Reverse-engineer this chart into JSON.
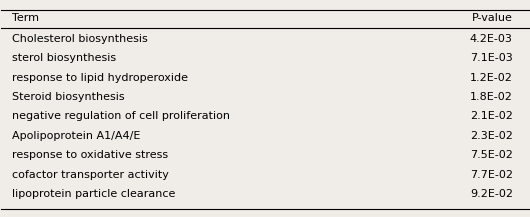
{
  "headers": [
    "Term",
    "P-value"
  ],
  "rows": [
    [
      "Cholesterol biosynthesis",
      "4.2E-03"
    ],
    [
      "sterol biosynthesis",
      "7.1E-03"
    ],
    [
      "response to lipid hydroperoxide",
      "1.2E-02"
    ],
    [
      "Steroid biosynthesis",
      "1.8E-02"
    ],
    [
      "negative regulation of cell proliferation",
      "2.1E-02"
    ],
    [
      "Apolipoprotein A1/A4/E",
      "2.3E-02"
    ],
    [
      "response to oxidative stress",
      "7.5E-02"
    ],
    [
      "cofactor transporter activity",
      "7.7E-02"
    ],
    [
      "lipoprotein particle clearance",
      "9.2E-02"
    ]
  ],
  "background_color": "#f0ede8",
  "header_fontsize": 8.0,
  "row_fontsize": 8.0,
  "fig_width": 5.3,
  "fig_height": 2.17,
  "dpi": 100
}
